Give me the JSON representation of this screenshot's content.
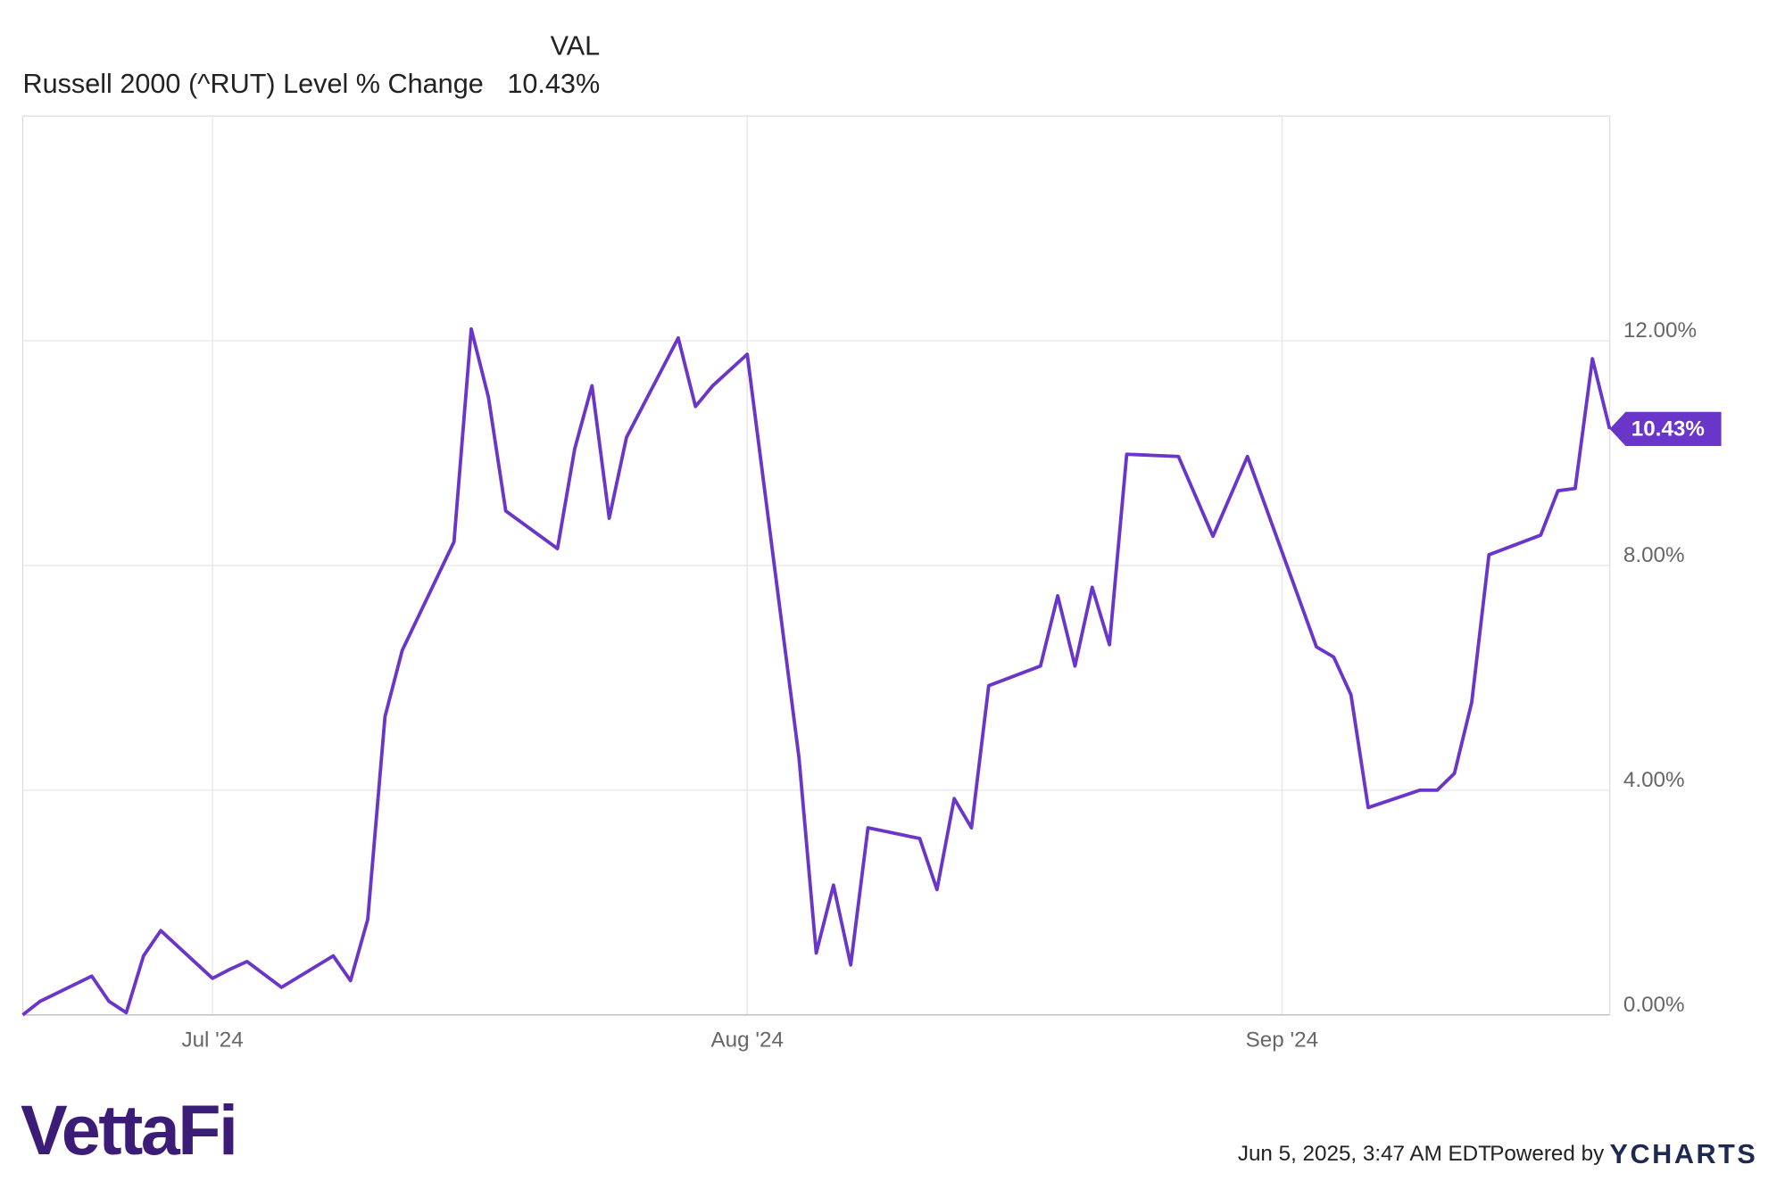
{
  "chart_data": {
    "type": "line",
    "legend_header": "VAL",
    "x": [
      0,
      1,
      4,
      5,
      6,
      7,
      8,
      11,
      12,
      13,
      15,
      18,
      19,
      20,
      21,
      22,
      25,
      26,
      27,
      28,
      31,
      32,
      33,
      34,
      35,
      38,
      39,
      40,
      42,
      45,
      46,
      47,
      48,
      49,
      52,
      53,
      54,
      55,
      56,
      59,
      60,
      61,
      62,
      63,
      64,
      67,
      69,
      71,
      75,
      76,
      77,
      78,
      81,
      82,
      83,
      84,
      85,
      88,
      89,
      90,
      91,
      92
    ],
    "xlim": [
      0,
      92
    ],
    "xticks": [
      {
        "value": 11,
        "label": "Jul '24"
      },
      {
        "value": 42,
        "label": "Aug '24"
      },
      {
        "value": 73,
        "label": "Sep '24"
      }
    ],
    "ylim": [
      0,
      16
    ],
    "yticks": [
      {
        "value": 0,
        "label": "0.00%"
      },
      {
        "value": 4,
        "label": "4.00%"
      },
      {
        "value": 8,
        "label": "8.00%"
      },
      {
        "value": 12,
        "label": "12.00%"
      }
    ],
    "grid": true,
    "series": [
      {
        "name": "Russell 2000 (^RUT) Level % Change",
        "color": "#6a35c9",
        "values": [
          0,
          0.24,
          0.69,
          0.24,
          0.04,
          1.05,
          1.5,
          0.65,
          0.81,
          0.95,
          0.49,
          1.05,
          0.61,
          1.7,
          5.31,
          6.49,
          8.42,
          12.21,
          10.99,
          8.97,
          8.3,
          10.08,
          11.2,
          8.84,
          10.28,
          12.05,
          10.83,
          11.2,
          11.76,
          4.58,
          1.1,
          2.31,
          0.89,
          3.33,
          3.14,
          2.23,
          3.85,
          3.33,
          5.86,
          6.21,
          7.46,
          6.21,
          7.61,
          6.59,
          9.98,
          9.94,
          8.52,
          9.94,
          6.55,
          6.37,
          5.7,
          3.69,
          4.0,
          4.0,
          4.3,
          5.56,
          8.19,
          8.54,
          9.33,
          9.37,
          11.68,
          10.43
        ],
        "value_labels": [
          null,
          null,
          null,
          null,
          null,
          null,
          null,
          null,
          null,
          null,
          null,
          null,
          null,
          null,
          null,
          null,
          null,
          null,
          null,
          null,
          null,
          null,
          null,
          null,
          null,
          null,
          null,
          null,
          null,
          null,
          null,
          null,
          null,
          null,
          null,
          null,
          null,
          null,
          null,
          null,
          null,
          null,
          null,
          null,
          null,
          null,
          null,
          null,
          null,
          null,
          null,
          null,
          null,
          null,
          null,
          null,
          null,
          null,
          null,
          null,
          null,
          "10.43%"
        ]
      }
    ]
  },
  "footer": {
    "logo": "VettaFi",
    "timestamp": "Jun 5, 2025, 3:47 AM EDT",
    "powered_by": "Powered by",
    "brand": "YCHARTS"
  }
}
